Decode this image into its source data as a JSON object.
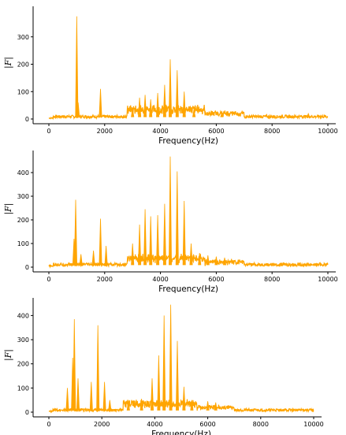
{
  "colors": {
    "series": "#FFA500",
    "axis": "#000000"
  },
  "chart_data": [
    {
      "type": "line",
      "xlabel": "Frequency(Hz)",
      "ylabel": "|F|",
      "xlim": [
        0,
        10000
      ],
      "ylim": [
        0,
        400
      ],
      "xticks": [
        0,
        2000,
        4000,
        6000,
        8000,
        10000
      ],
      "yticks": [
        0,
        100,
        200,
        300
      ],
      "grid": false,
      "baseline": 8,
      "peaks": [
        {
          "x": 1000,
          "y": 375
        },
        {
          "x": 1050,
          "y": 60
        },
        {
          "x": 1850,
          "y": 110
        },
        {
          "x": 3000,
          "y": 40
        },
        {
          "x": 3250,
          "y": 78
        },
        {
          "x": 3450,
          "y": 88
        },
        {
          "x": 3650,
          "y": 72
        },
        {
          "x": 3900,
          "y": 95
        },
        {
          "x": 4150,
          "y": 125
        },
        {
          "x": 4350,
          "y": 218
        },
        {
          "x": 4600,
          "y": 178
        },
        {
          "x": 4850,
          "y": 100
        },
        {
          "x": 5200,
          "y": 35
        },
        {
          "x": 6200,
          "y": 22
        },
        {
          "x": 9300,
          "y": 20
        }
      ]
    },
    {
      "type": "line",
      "xlabel": "Frequency(Hz)",
      "ylabel": "|F|",
      "xlim": [
        0,
        10000
      ],
      "ylim": [
        0,
        480
      ],
      "xticks": [
        0,
        2000,
        4000,
        6000,
        8000,
        10000
      ],
      "yticks": [
        0,
        100,
        200,
        300,
        400
      ],
      "grid": false,
      "baseline": 10,
      "peaks": [
        {
          "x": 900,
          "y": 120
        },
        {
          "x": 960,
          "y": 285
        },
        {
          "x": 1150,
          "y": 55
        },
        {
          "x": 1600,
          "y": 70
        },
        {
          "x": 1850,
          "y": 205
        },
        {
          "x": 2050,
          "y": 90
        },
        {
          "x": 3000,
          "y": 100
        },
        {
          "x": 3250,
          "y": 180
        },
        {
          "x": 3450,
          "y": 245
        },
        {
          "x": 3650,
          "y": 215
        },
        {
          "x": 3900,
          "y": 220
        },
        {
          "x": 4150,
          "y": 268
        },
        {
          "x": 4350,
          "y": 468
        },
        {
          "x": 4600,
          "y": 405
        },
        {
          "x": 4850,
          "y": 280
        },
        {
          "x": 5100,
          "y": 100
        },
        {
          "x": 5400,
          "y": 60
        },
        {
          "x": 5700,
          "y": 50
        },
        {
          "x": 6000,
          "y": 45
        },
        {
          "x": 6300,
          "y": 40
        }
      ]
    },
    {
      "type": "line",
      "xlabel": "Frequency(Hz)",
      "ylabel": "|F|",
      "xlim": [
        0,
        10000
      ],
      "ylim": [
        0,
        460
      ],
      "xticks": [
        0,
        2000,
        4000,
        6000,
        8000,
        10000
      ],
      "yticks": [
        0,
        100,
        200,
        300,
        400
      ],
      "grid": false,
      "baseline": 8,
      "peaks": [
        {
          "x": 700,
          "y": 100
        },
        {
          "x": 900,
          "y": 225
        },
        {
          "x": 960,
          "y": 385
        },
        {
          "x": 1100,
          "y": 140
        },
        {
          "x": 1600,
          "y": 125
        },
        {
          "x": 1850,
          "y": 360
        },
        {
          "x": 2100,
          "y": 125
        },
        {
          "x": 2300,
          "y": 50
        },
        {
          "x": 3000,
          "y": 45
        },
        {
          "x": 3500,
          "y": 55
        },
        {
          "x": 3900,
          "y": 140
        },
        {
          "x": 4150,
          "y": 235
        },
        {
          "x": 4350,
          "y": 400
        },
        {
          "x": 4600,
          "y": 445
        },
        {
          "x": 4850,
          "y": 295
        },
        {
          "x": 5100,
          "y": 105
        },
        {
          "x": 5400,
          "y": 50
        },
        {
          "x": 6000,
          "y": 45
        },
        {
          "x": 6300,
          "y": 40
        }
      ]
    }
  ]
}
